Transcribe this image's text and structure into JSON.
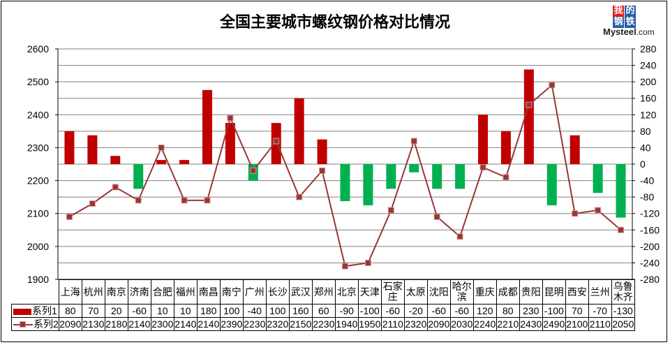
{
  "title": "全国主要城市螺纹钢价格对比情况",
  "logo": {
    "chars": [
      "我",
      "的",
      "钢",
      "铁"
    ],
    "brand": "Mysteel",
    "suffix": ".com"
  },
  "colors": {
    "positive_bar": "#c00000",
    "negative_bar": "#00b050",
    "line": "#953735",
    "marker_border": "#d99694",
    "gridline": "#808080"
  },
  "legend": {
    "series1": "系列1",
    "series2": "系列2"
  },
  "chart_data": {
    "type": "bar+line",
    "title": "全国主要城市螺纹钢价格对比情况",
    "categories": [
      "上海",
      "杭州",
      "南京",
      "济南",
      "合肥",
      "福州",
      "南昌",
      "南宁",
      "广州",
      "长沙",
      "武汉",
      "郑州",
      "北京",
      "天津",
      "石家庄",
      "太原",
      "沈阳",
      "哈尔滨",
      "重庆",
      "成都",
      "贵阳",
      "昆明",
      "西安",
      "兰州",
      "乌鲁木齐"
    ],
    "series": [
      {
        "name": "系列1",
        "type": "bar",
        "axis": "right",
        "values": [
          80,
          70,
          20,
          -60,
          10,
          10,
          180,
          100,
          -40,
          100,
          160,
          60,
          -90,
          -100,
          -60,
          -20,
          -60,
          -60,
          120,
          80,
          230,
          -100,
          70,
          -70,
          -130
        ]
      },
      {
        "name": "系列2",
        "type": "line",
        "axis": "left",
        "values": [
          2090,
          2130,
          2180,
          2140,
          2300,
          2140,
          2140,
          2390,
          2230,
          2320,
          2150,
          2230,
          1940,
          1950,
          2110,
          2320,
          2090,
          2030,
          2240,
          2210,
          2430,
          2490,
          2100,
          2110,
          2050
        ]
      }
    ],
    "left_axis": {
      "min": 1900,
      "max": 2600,
      "ticks": [
        2600,
        2500,
        2400,
        2300,
        2200,
        2100,
        2000,
        1900
      ]
    },
    "right_axis": {
      "min": -280,
      "max": 280,
      "ticks": [
        280,
        240,
        200,
        160,
        120,
        80,
        40,
        0,
        -40,
        -80,
        -120,
        -160,
        -200,
        -240,
        -280
      ]
    },
    "grid": true,
    "legend_position": "data-table"
  },
  "table": {
    "city_labels": [
      [
        "上海"
      ],
      [
        "杭州"
      ],
      [
        "南京"
      ],
      [
        "济南"
      ],
      [
        "合肥"
      ],
      [
        "福州"
      ],
      [
        "南昌"
      ],
      [
        "南宁"
      ],
      [
        "广州"
      ],
      [
        "长沙"
      ],
      [
        "武汉"
      ],
      [
        "郑州"
      ],
      [
        "北京"
      ],
      [
        "天津"
      ],
      [
        "石家",
        "庄"
      ],
      [
        "太原"
      ],
      [
        "沈阳"
      ],
      [
        "哈尔",
        "滨"
      ],
      [
        "重庆"
      ],
      [
        "成都"
      ],
      [
        "贵阳"
      ],
      [
        "昆明"
      ],
      [
        "西安"
      ],
      [
        "兰州"
      ],
      [
        "乌鲁",
        "木齐"
      ]
    ]
  }
}
